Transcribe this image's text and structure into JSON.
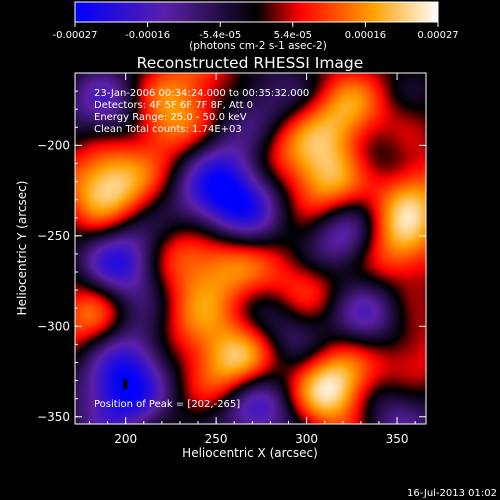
{
  "chart_data": {
    "type": "heatmap",
    "title": "Reconstructed RHESSI Image",
    "xlabel": "Heliocentric X (arcsec)",
    "ylabel": "Heliocentric Y (arcsec)",
    "xlim": [
      172,
      366
    ],
    "ylim": [
      -354,
      -160
    ],
    "x_ticks": [
      200,
      250,
      300,
      350
    ],
    "y_ticks": [
      -200,
      -250,
      -300,
      -350
    ],
    "colorbar": {
      "ticks": [
        "-0.00027",
        "-0.00016",
        "-5.4e-05",
        "5.4e-05",
        "0.00016",
        "0.00027"
      ],
      "unit_label": "(photons cm-2 s-1 asec-2)",
      "range": [
        -0.00027,
        0.00027
      ],
      "colors": [
        "#0000ff",
        "#5a20a8",
        "#000000",
        "#ff0000",
        "#ffa000",
        "#ffffff"
      ]
    },
    "annotations": [
      "23-Jan-2006 00:34:24.000 to 00:35:32.000",
      "Detectors: 4F 5F 6F 7F 8F, Att 0",
      "Energy Range: 25.0 - 50.0 keV",
      "Clean    Total counts: 1.74E+03"
    ],
    "peak_label": "Position of Peak = [202,-265]",
    "peak": [
      202,
      -265
    ],
    "timestamp": "16-Jul-2013 01:02",
    "blobs": [
      {
        "x": 190,
        "y": -222,
        "v": 0.00026
      },
      {
        "x": 262,
        "y": -322,
        "v": 0.00025
      },
      {
        "x": 315,
        "y": -334,
        "v": 0.00027
      },
      {
        "x": 312,
        "y": -220,
        "v": 0.00023
      },
      {
        "x": 355,
        "y": -226,
        "v": 0.00022
      },
      {
        "x": 322,
        "y": -185,
        "v": 0.00019
      },
      {
        "x": 222,
        "y": -188,
        "v": 0.00017
      },
      {
        "x": 232,
        "y": -258,
        "v": 0.00017
      },
      {
        "x": 300,
        "y": -276,
        "v": 0.00015
      },
      {
        "x": 256,
        "y": -268,
        "v": 0.00014
      },
      {
        "x": 350,
        "y": -258,
        "v": 0.00017
      },
      {
        "x": 182,
        "y": -296,
        "v": 0.00015
      },
      {
        "x": 285,
        "y": -200,
        "v": 0.00012
      },
      {
        "x": 240,
        "y": -163,
        "v": 0.00011
      },
      {
        "x": 355,
        "y": -318,
        "v": 0.00014
      },
      {
        "x": 235,
        "y": -302,
        "v": 0.00011
      },
      {
        "x": 200,
        "y": -265,
        "v": -0.00024
      },
      {
        "x": 265,
        "y": -230,
        "v": -0.00022
      },
      {
        "x": 318,
        "y": -252,
        "v": -0.0002
      },
      {
        "x": 205,
        "y": -315,
        "v": -0.00018
      },
      {
        "x": 240,
        "y": -240,
        "v": -0.00015
      },
      {
        "x": 190,
        "y": -180,
        "v": -0.00016
      },
      {
        "x": 195,
        "y": -340,
        "v": -0.00022
      },
      {
        "x": 272,
        "y": -343,
        "v": -0.00022
      },
      {
        "x": 338,
        "y": -214,
        "v": -0.00014
      },
      {
        "x": 278,
        "y": -178,
        "v": -0.00013
      },
      {
        "x": 336,
        "y": -296,
        "v": -0.00016
      },
      {
        "x": 350,
        "y": -345,
        "v": -0.00015
      },
      {
        "x": 290,
        "y": -300,
        "v": -0.00012
      },
      {
        "x": 252,
        "y": -208,
        "v": -0.00012
      }
    ]
  }
}
